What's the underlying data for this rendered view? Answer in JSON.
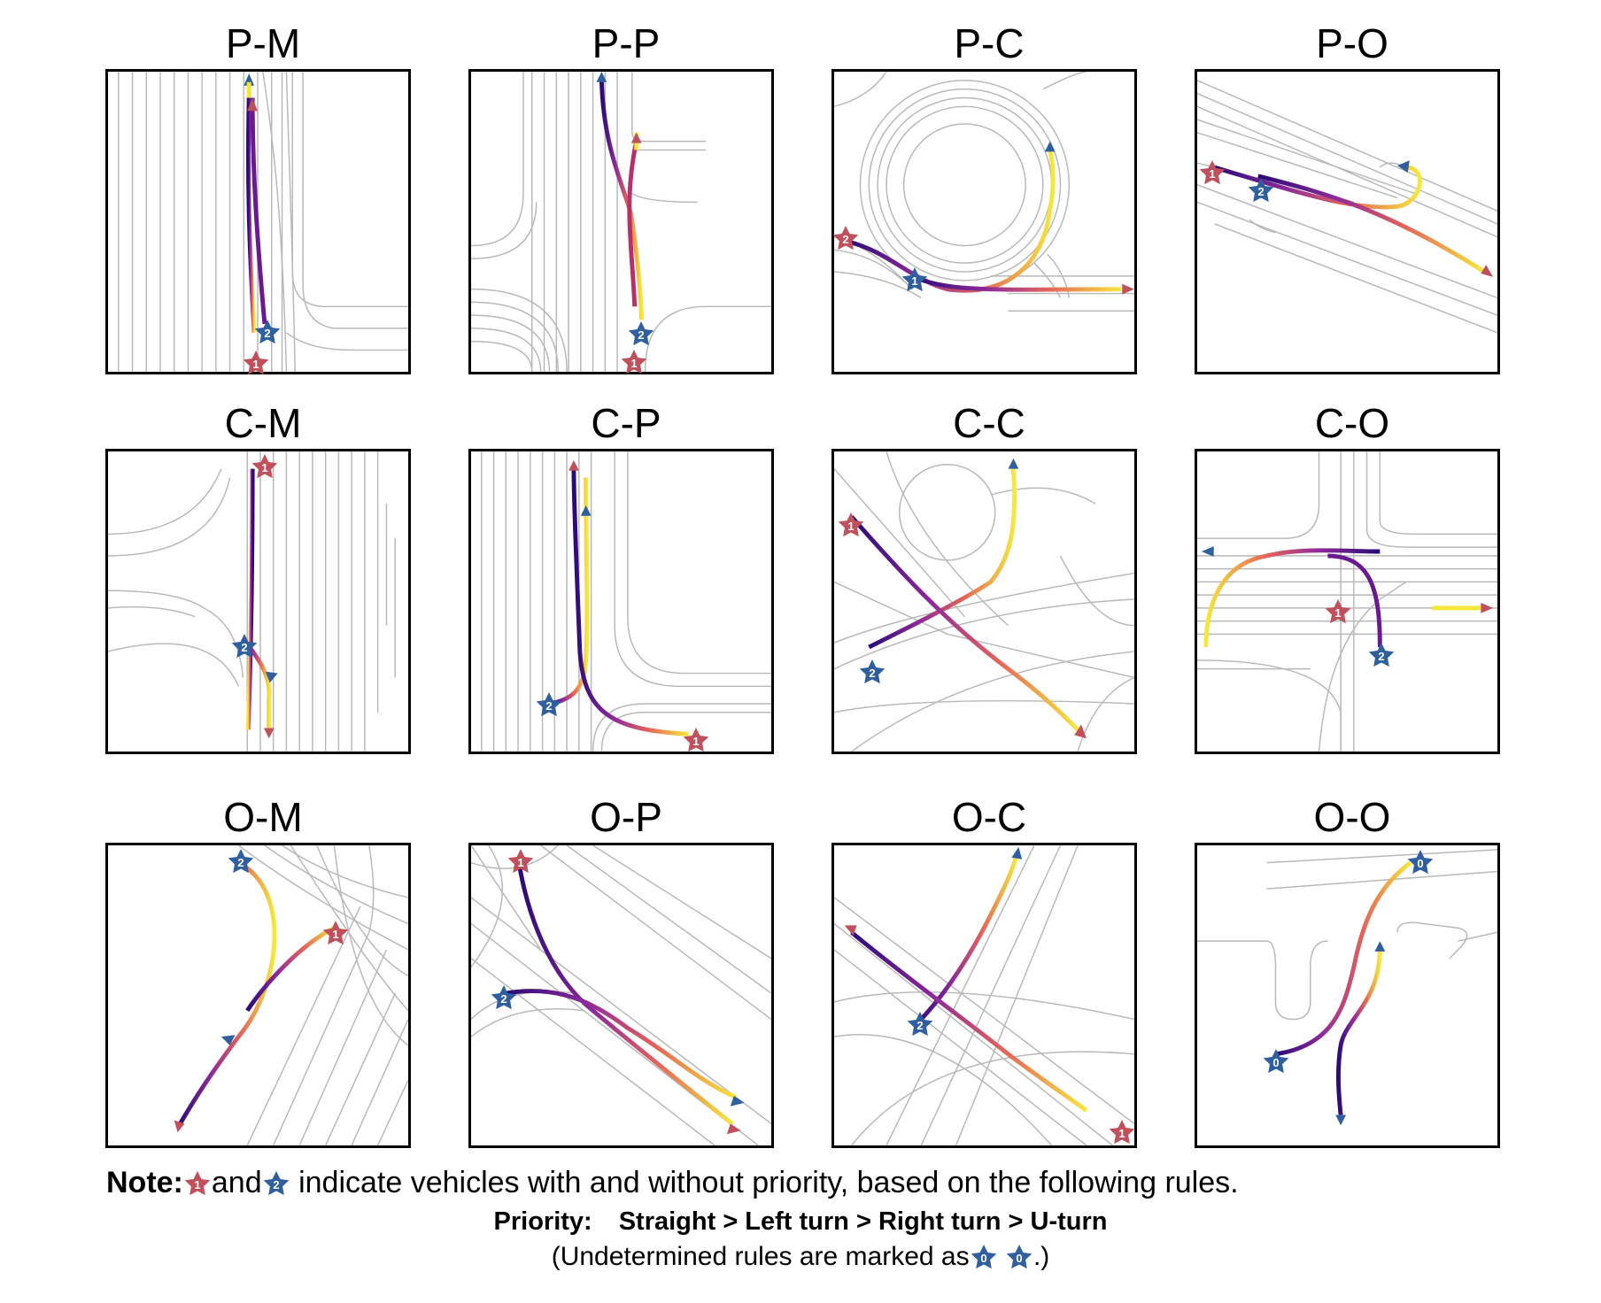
{
  "panels": [
    {
      "title": "P-M",
      "markers": [
        {
          "kind": "red",
          "label": "1"
        },
        {
          "kind": "blue",
          "label": "2"
        }
      ]
    },
    {
      "title": "P-P",
      "markers": [
        {
          "kind": "red",
          "label": "1"
        },
        {
          "kind": "blue",
          "label": "2"
        }
      ]
    },
    {
      "title": "P-C",
      "markers": [
        {
          "kind": "red",
          "label": "2"
        },
        {
          "kind": "blue",
          "label": "1"
        }
      ]
    },
    {
      "title": "P-O",
      "markers": [
        {
          "kind": "red",
          "label": "1"
        },
        {
          "kind": "blue",
          "label": "2"
        }
      ]
    },
    {
      "title": "C-M",
      "markers": [
        {
          "kind": "red",
          "label": "1"
        },
        {
          "kind": "blue",
          "label": "2"
        }
      ]
    },
    {
      "title": "C-P",
      "markers": [
        {
          "kind": "red",
          "label": "1"
        },
        {
          "kind": "blue",
          "label": "2"
        }
      ]
    },
    {
      "title": "C-C",
      "markers": [
        {
          "kind": "red",
          "label": "1"
        },
        {
          "kind": "blue",
          "label": "2"
        }
      ]
    },
    {
      "title": "C-O",
      "markers": [
        {
          "kind": "red",
          "label": "1"
        },
        {
          "kind": "blue",
          "label": "2"
        }
      ]
    },
    {
      "title": "O-M",
      "markers": [
        {
          "kind": "red",
          "label": "1"
        },
        {
          "kind": "blue",
          "label": "2"
        }
      ]
    },
    {
      "title": "O-P",
      "markers": [
        {
          "kind": "red",
          "label": "1"
        },
        {
          "kind": "blue",
          "label": "2"
        }
      ]
    },
    {
      "title": "O-C",
      "markers": [
        {
          "kind": "red",
          "label": "1"
        },
        {
          "kind": "blue",
          "label": "2"
        }
      ]
    },
    {
      "title": "O-O",
      "markers": [
        {
          "kind": "blue",
          "label": "0"
        },
        {
          "kind": "blue",
          "label": "0"
        }
      ]
    }
  ],
  "note": {
    "bold": "Note:",
    "star_red_label": "1",
    "and_text": "and",
    "star_blue_label": "2",
    "rest": "indicate vehicles with and without priority, based on the following rules."
  },
  "priority": {
    "label": "Priority:",
    "rule": "Straight > Left turn > Right turn > U-turn"
  },
  "undetermined": {
    "prefix": "(Undetermined rules are marked as",
    "star_label": "0",
    "suffix": ".)"
  },
  "colors": {
    "priority_star": "#c0505c",
    "non_priority_star": "#2f5f9e",
    "road_lines": "#b8b8b8",
    "trajectory_start": "#3b0f70",
    "trajectory_mid": "#e0604a",
    "trajectory_end": "#f5e63a"
  }
}
